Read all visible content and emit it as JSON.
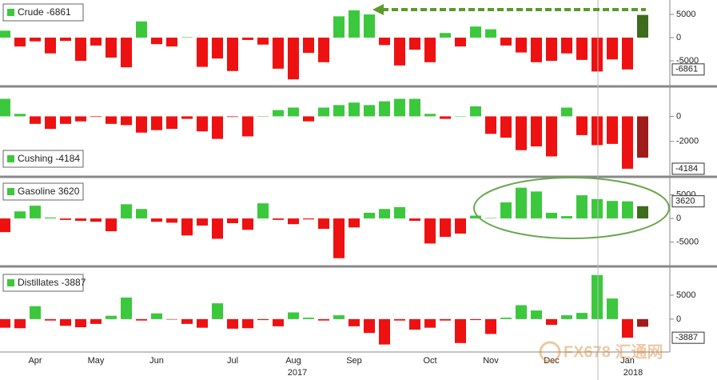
{
  "chart_data": [
    {
      "type": "bar",
      "legend": "Crude -6861",
      "color": "#3cc83c",
      "negative_color": "#ee1111",
      "last_color": "#3f6b1d",
      "values": [
        1500,
        -1900,
        -800,
        -3400,
        -700,
        -5000,
        -1700,
        -4300,
        -6400,
        3500,
        -1400,
        -1900,
        100,
        -6300,
        -4500,
        -7200,
        -500,
        -1500,
        -6700,
        -9000,
        -3300,
        -5300,
        4600,
        5900,
        5000,
        -1600,
        -6000,
        -2600,
        -5300,
        1000,
        -1900,
        2400,
        1800,
        -1700,
        -3200,
        -5300,
        -5000,
        -3400,
        -4800,
        -7300,
        -4700,
        -6861,
        4900
      ],
      "ylim": [
        -10000,
        7600
      ],
      "yticks": [
        -5000,
        0,
        5000
      ],
      "latest": -6861
    },
    {
      "type": "bar",
      "legend": "Cushing -4184",
      "color": "#3cc83c",
      "negative_color": "#ee1111",
      "last_color": "#a01c1c",
      "values": [
        1400,
        200,
        -600,
        -1000,
        -600,
        -400,
        -50,
        -600,
        -700,
        -1300,
        -1100,
        -1000,
        -200,
        -1200,
        -1800,
        -50,
        -1600,
        0,
        500,
        700,
        -400,
        700,
        900,
        1100,
        900,
        1200,
        1400,
        1400,
        200,
        -200,
        0,
        800,
        -1400,
        -1700,
        -2700,
        -2400,
        -3200,
        700,
        -1500,
        -2300,
        -2200,
        -4184,
        -3300
      ],
      "ylim": [
        -4700,
        2200
      ],
      "yticks": [
        -2000,
        0
      ],
      "latest": -4184
    },
    {
      "type": "bar",
      "legend": "Gasoline 3620",
      "color": "#3cc83c",
      "negative_color": "#ee1111",
      "last_color": "#3f6b1d",
      "values": [
        -2900,
        1500,
        2700,
        200,
        -300,
        -500,
        -700,
        -2700,
        3000,
        2000,
        -700,
        -900,
        -3600,
        -1500,
        -4300,
        -1000,
        -2400,
        3200,
        -300,
        -1200,
        -200,
        -2200,
        -8400,
        -1900,
        1200,
        2000,
        2400,
        -500,
        -5300,
        -3900,
        -3200,
        600,
        100,
        3400,
        6500,
        5700,
        1200,
        500,
        4900,
        4100,
        3700,
        3620,
        2600
      ],
      "ylim": [
        -9800,
        8300
      ],
      "yticks": [
        -5000,
        0,
        5000
      ],
      "latest": 3620
    },
    {
      "type": "bar",
      "legend": "Distillates -3887",
      "color": "#3cc83c",
      "negative_color": "#ee1111",
      "last_color": "#a01c1c",
      "values": [
        -1800,
        -1900,
        2700,
        -300,
        -1400,
        -1700,
        -1000,
        700,
        4500,
        -300,
        1200,
        -100,
        -1000,
        -1800,
        3300,
        -2000,
        -1900,
        -200,
        -1500,
        1400,
        300,
        -300,
        800,
        -1500,
        -2900,
        -5300,
        -300,
        -2200,
        -1800,
        -300,
        -5000,
        -200,
        -3100,
        300,
        2900,
        1800,
        -1200,
        800,
        1300,
        9200,
        4300,
        -3887,
        -1600
      ],
      "ylim": [
        -6700,
        10500
      ],
      "yticks": [
        0,
        5000
      ],
      "latest": -3887,
      "categories": [
        null,
        null,
        "Apr",
        null,
        null,
        null,
        "May",
        null,
        null,
        null,
        "Jun",
        null,
        null,
        null,
        null,
        "Jul",
        null,
        null,
        null,
        "Aug",
        null,
        null,
        null,
        "Sep",
        null,
        null,
        null,
        null,
        "Oct",
        null,
        null,
        null,
        "Nov",
        null,
        null,
        null,
        "Dec",
        null,
        null,
        null,
        null,
        "Jan",
        null
      ],
      "years": [
        "2017",
        "2018"
      ]
    }
  ],
  "watermark": "FX678 汇通网"
}
